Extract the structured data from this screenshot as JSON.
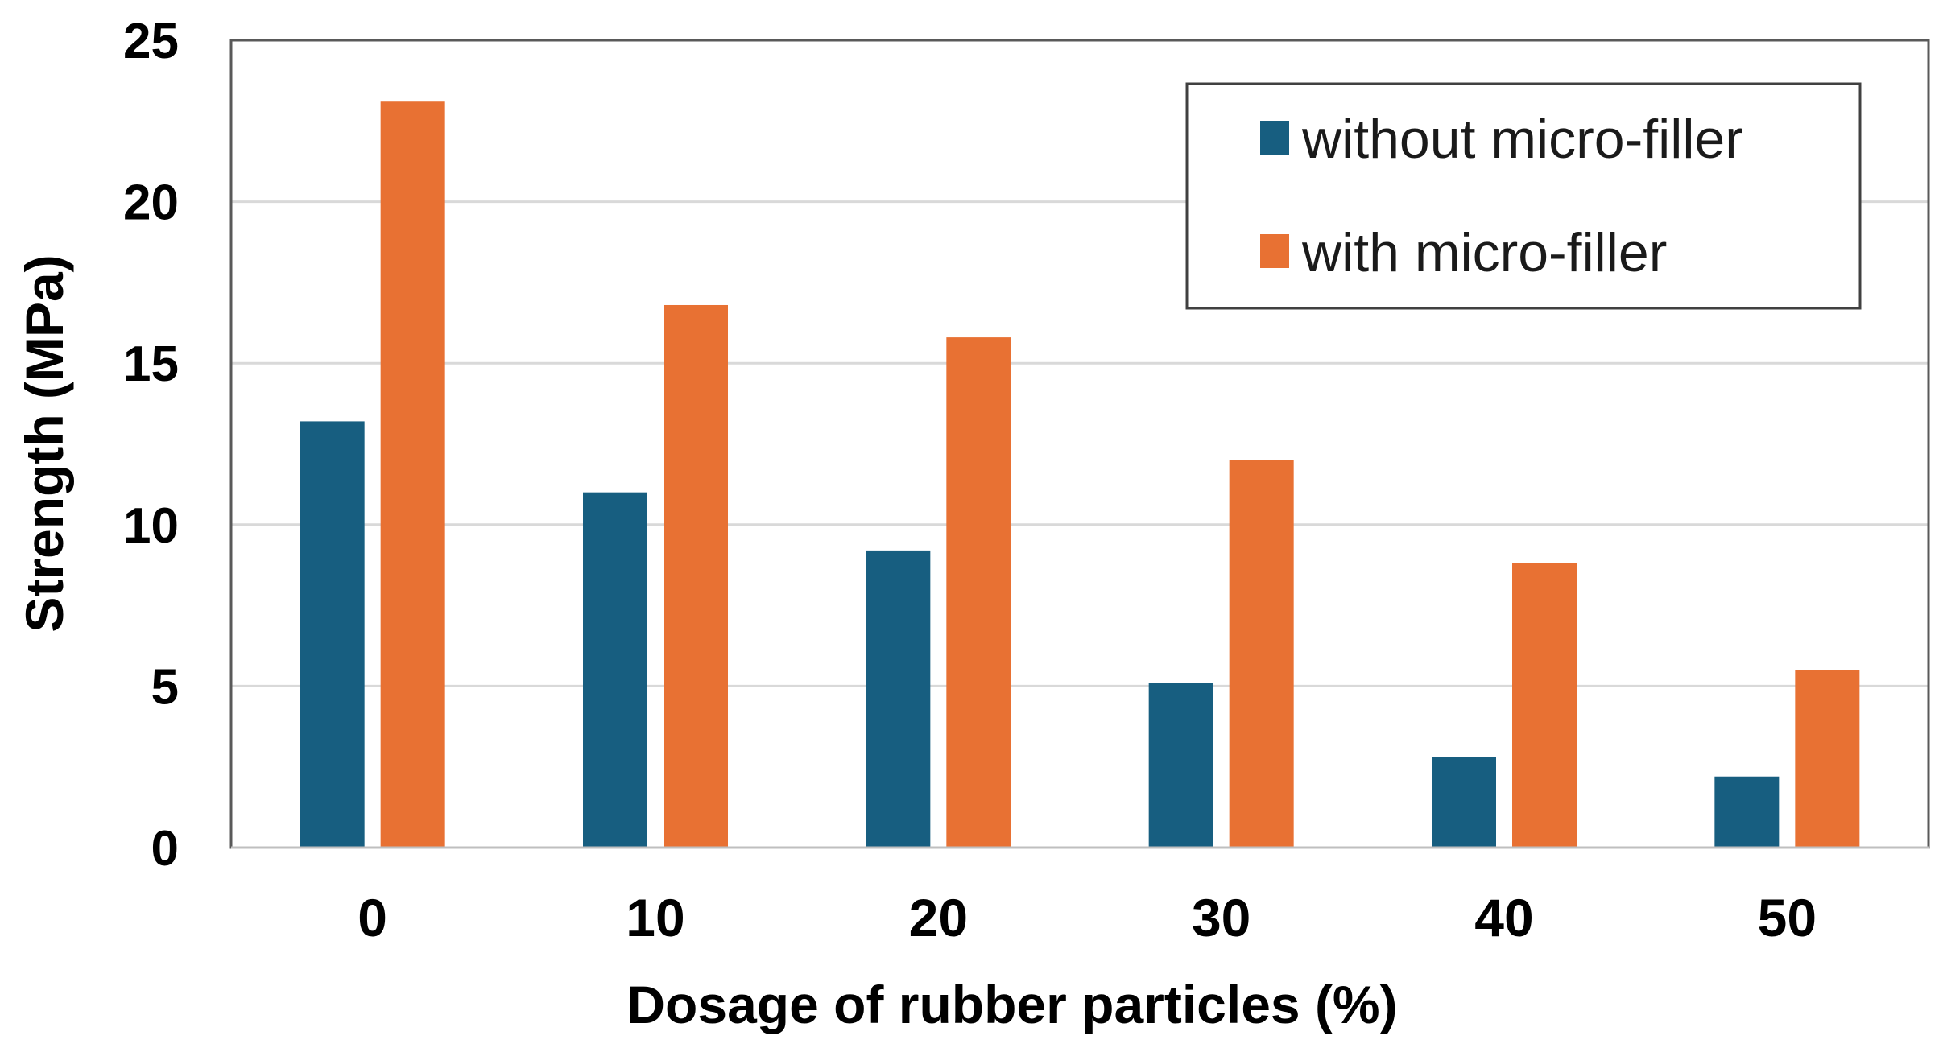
{
  "chart_data": {
    "type": "bar",
    "title": "",
    "xlabel": "Dosage of rubber particles (%)",
    "ylabel": "Strength (MPa)",
    "categories": [
      "0",
      "10",
      "20",
      "30",
      "40",
      "50"
    ],
    "ylim": [
      0,
      25
    ],
    "yticks": [
      "0",
      "5",
      "10",
      "15",
      "20",
      "25"
    ],
    "grid": true,
    "legend_position": "top-right",
    "series": [
      {
        "name": "without micro-filler",
        "color": "#175e80",
        "values": [
          13.2,
          11.0,
          9.2,
          5.1,
          2.8,
          2.2
        ]
      },
      {
        "name": "with micro-filler",
        "color": "#e87133",
        "values": [
          23.1,
          16.8,
          15.8,
          12.0,
          8.8,
          5.5
        ]
      }
    ]
  }
}
